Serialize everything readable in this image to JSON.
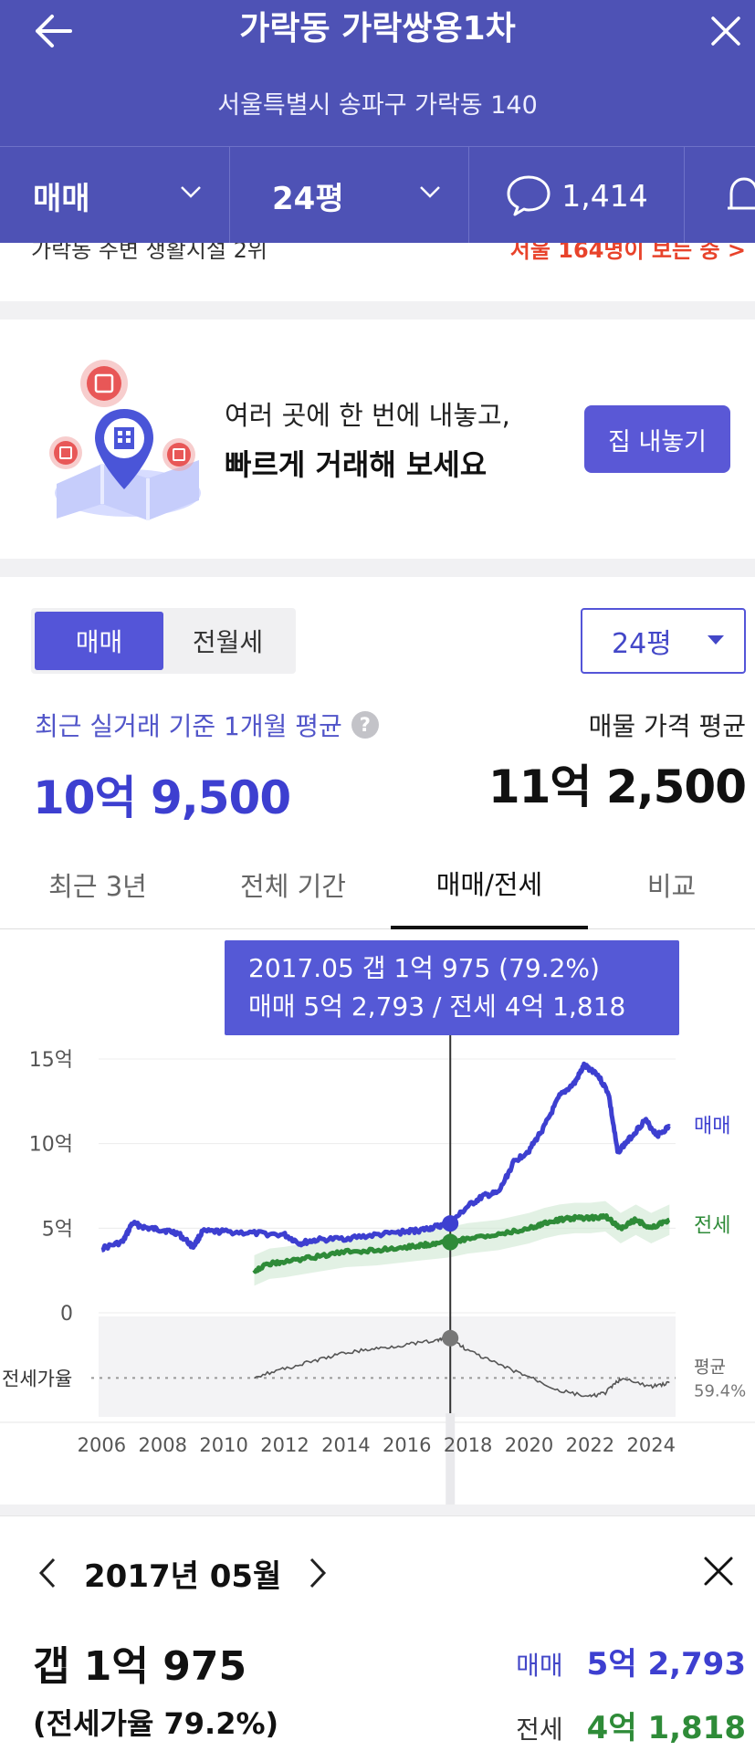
{
  "header": {
    "title": "가락동 가락쌍용1차",
    "address": "서울특별시 송파구 가락동 140",
    "filters": {
      "trade_type": "매매",
      "size": "24평",
      "comment_count": "1,414"
    }
  },
  "banner": {
    "line1": "여러 곳에 한 번에 내놓고,",
    "line2": "빠르게 거래해 보세요",
    "button": "집 내놓기"
  },
  "price": {
    "segment": [
      "매매",
      "전월세"
    ],
    "size_select": "24평",
    "recent_label": "최근 실거래 기준 1개월 평균",
    "recent_value": "10억 9,500",
    "listing_label": "매물 가격 평균",
    "listing_value": "11억 2,500"
  },
  "tabs": [
    "최근 3년",
    "전체 기간",
    "매매/전세",
    "비교"
  ],
  "tooltip": {
    "line1": "2017.05  갭 1억 975 (79.2%)",
    "line2": "매매 5억 2,793 / 전세 4억 1,818"
  },
  "chart_data": {
    "type": "line",
    "y_ticks": [
      "15억",
      "10억",
      "5억",
      "0"
    ],
    "ylim": [
      0,
      15
    ],
    "x_ticks": [
      "2006",
      "2008",
      "2010",
      "2012",
      "2014",
      "2016",
      "2018",
      "2020",
      "2022",
      "2024"
    ],
    "xlim": [
      2005.9,
      2024.8
    ],
    "series": [
      {
        "name": "매매",
        "color": "#3d3fd0",
        "x": [
          2006.0,
          2006.7,
          2007.0,
          2007.5,
          2008.0,
          2008.5,
          2009.0,
          2009.3,
          2010.0,
          2011.0,
          2012.0,
          2012.5,
          2013.0,
          2014.0,
          2015.0,
          2016.0,
          2016.5,
          2017.0,
          2017.42,
          2018.0,
          2018.5,
          2019.0,
          2019.5,
          2020.0,
          2020.5,
          2021.0,
          2021.5,
          2021.8,
          2022.2,
          2022.6,
          2022.9,
          2023.3,
          2023.8,
          2024.2,
          2024.6
        ],
        "values": [
          3.8,
          4.2,
          5.3,
          5.0,
          4.9,
          4.7,
          3.9,
          4.8,
          4.8,
          4.7,
          4.6,
          4.1,
          4.3,
          4.4,
          4.6,
          4.8,
          4.9,
          5.1,
          5.28,
          6.3,
          6.9,
          7.1,
          8.9,
          9.6,
          11.0,
          12.8,
          13.6,
          14.6,
          14.2,
          13.0,
          9.5,
          10.3,
          11.4,
          10.5,
          11.0
        ]
      },
      {
        "name": "전세",
        "color": "#2e8b38",
        "x": [
          2011.0,
          2011.5,
          2012.0,
          2013.0,
          2014.0,
          2015.0,
          2016.0,
          2016.5,
          2017.0,
          2017.42,
          2018.0,
          2019.0,
          2020.0,
          2020.5,
          2021.0,
          2021.5,
          2022.0,
          2022.5,
          2023.0,
          2023.5,
          2024.0,
          2024.6
        ],
        "values": [
          2.5,
          2.9,
          3.0,
          3.3,
          3.6,
          3.7,
          3.9,
          4.0,
          4.1,
          4.18,
          4.4,
          4.6,
          5.0,
          5.3,
          5.5,
          5.6,
          5.6,
          5.7,
          5.0,
          5.5,
          5.0,
          5.5
        ]
      },
      {
        "name": "전세가율",
        "color": "#555555",
        "x": [
          2011.0,
          2012.0,
          2013.0,
          2014.0,
          2015.0,
          2016.0,
          2017.0,
          2017.42,
          2018.0,
          2019.0,
          2020.0,
          2021.0,
          2022.0,
          2022.5,
          2023.0,
          2024.0,
          2024.6
        ],
        "values": [
          60,
          64,
          68,
          72,
          74,
          76,
          78,
          79.2,
          73,
          66,
          60,
          53,
          50,
          52,
          59,
          55,
          57
        ]
      }
    ],
    "right_labels": [
      "매매",
      "전세"
    ],
    "ratio_label": "전세가율",
    "average_label": "평균",
    "average_value": "59.4%",
    "marker_x": 2017.42
  },
  "detail": {
    "month": "2017년 05월",
    "gap": "갭 1억 975",
    "ratio": "(전세가율 79.2%)",
    "sale_key": "매매",
    "sale_value": "5억 2,793",
    "jeonse_key": "전세",
    "jeonse_value": "4억 1,818"
  }
}
